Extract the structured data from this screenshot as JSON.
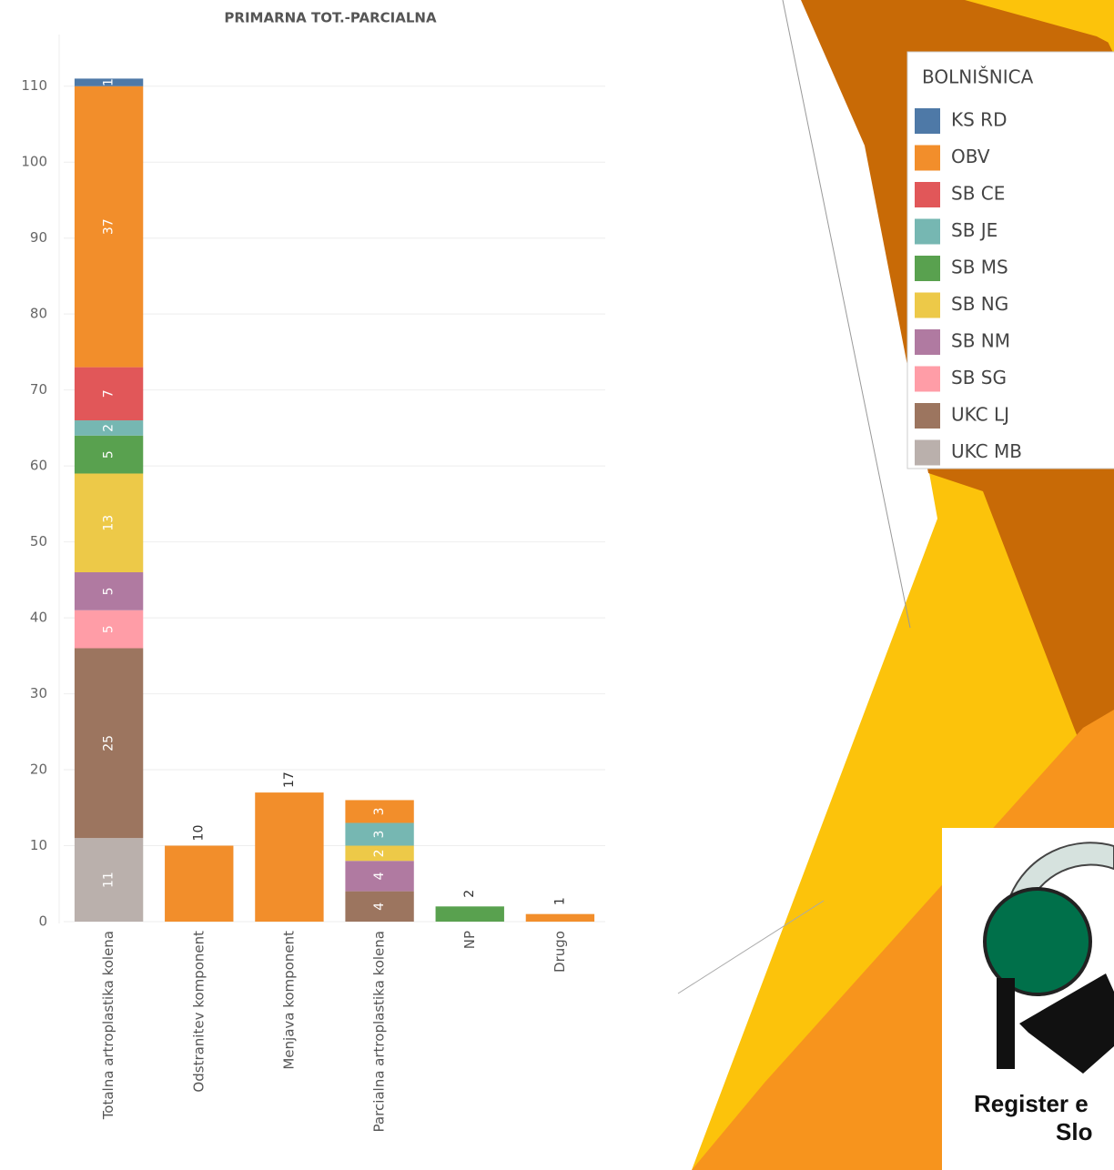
{
  "chart_data": {
    "type": "stacked-bar",
    "title": "PRIMARNA TOT.-PARCIALNA",
    "categories": [
      "Totalna artroplastika kolena",
      "Odstranitev komponent",
      "Menjava komponent",
      "Parcialna artroplastika kolena",
      "NP",
      "Drugo"
    ],
    "series": [
      {
        "name": "KS RD",
        "color": "#4E79A7",
        "values": [
          1,
          null,
          null,
          null,
          null,
          null
        ]
      },
      {
        "name": "OBV",
        "color": "#F28E2B",
        "values": [
          37,
          10,
          17,
          3,
          null,
          1
        ]
      },
      {
        "name": "SB CE",
        "color": "#E15759",
        "values": [
          7,
          null,
          null,
          null,
          null,
          null
        ]
      },
      {
        "name": "SB JE",
        "color": "#76B7B2",
        "values": [
          2,
          null,
          null,
          3,
          null,
          null
        ]
      },
      {
        "name": "SB MS",
        "color": "#59A14F",
        "values": [
          5,
          null,
          null,
          null,
          2,
          null
        ]
      },
      {
        "name": "SB NG",
        "color": "#EDC948",
        "values": [
          13,
          null,
          null,
          2,
          null,
          null
        ]
      },
      {
        "name": "SB NM",
        "color": "#B07AA1",
        "values": [
          5,
          null,
          null,
          4,
          null,
          null
        ]
      },
      {
        "name": "SB SG",
        "color": "#FF9DA7",
        "values": [
          5,
          null,
          null,
          null,
          null,
          null
        ]
      },
      {
        "name": "UKC LJ",
        "color": "#9C755F",
        "values": [
          25,
          null,
          null,
          4,
          null,
          null
        ]
      },
      {
        "name": "UKC MB",
        "color": "#BAB0AC",
        "values": [
          11,
          null,
          null,
          null,
          null,
          null
        ]
      }
    ],
    "ylim": [
      0,
      115
    ],
    "yticks": [
      0,
      10,
      20,
      30,
      40,
      50,
      60,
      70,
      80,
      90,
      100,
      110
    ],
    "grid": true
  },
  "legend_title": "BOLNIŠNICA",
  "logo": {
    "line1": "Register e",
    "line2": "Slo"
  }
}
